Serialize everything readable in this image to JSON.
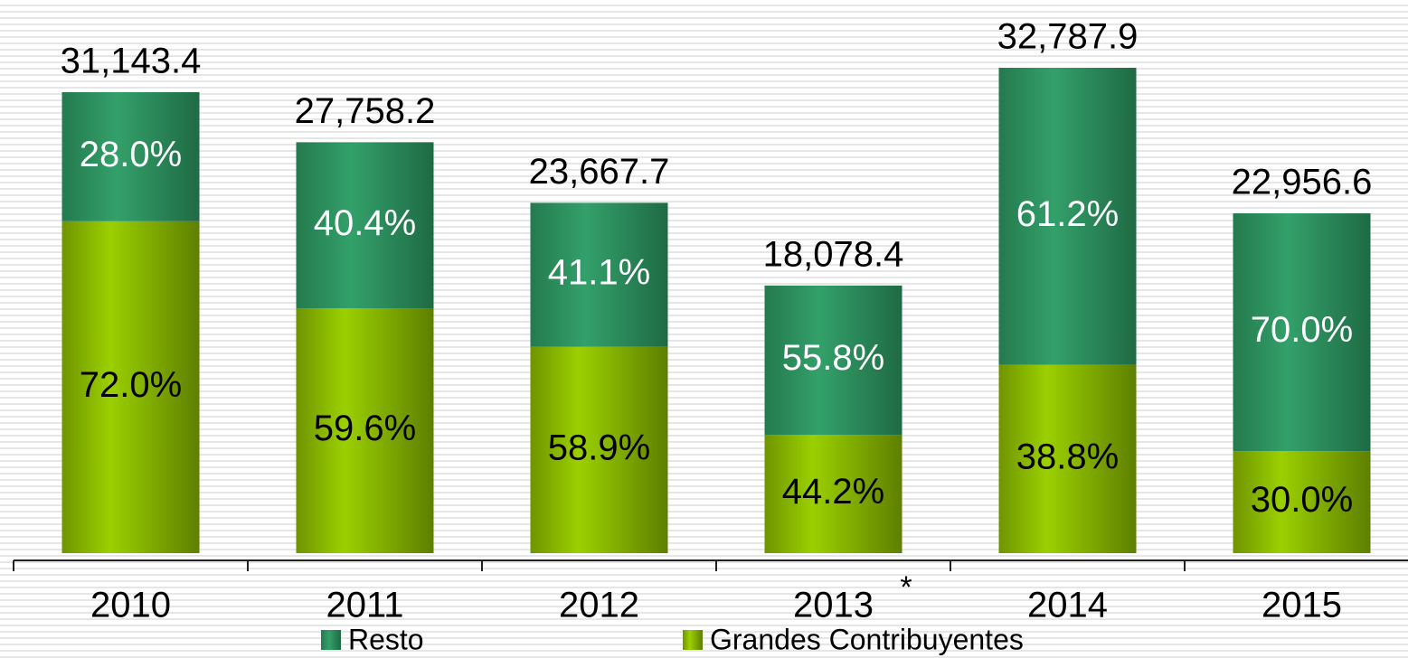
{
  "chart_data": {
    "type": "stacked_bar",
    "categories": [
      "2010",
      "2011",
      "2012",
      "2013",
      "2014",
      "2015"
    ],
    "annotation": "*",
    "totals": {
      "values": [
        31143.4,
        27758.2,
        23667.7,
        18078.4,
        32787.9,
        22956.6
      ],
      "value_labels": [
        "31,143.4",
        "27,758.2",
        "23,667.7",
        "18,078.4",
        "32,787.9",
        "22,956.6"
      ]
    },
    "series": [
      {
        "name": "Grandes Contribuyentes",
        "color": "#8dbf00",
        "values": [
          72.0,
          59.6,
          58.9,
          44.2,
          38.8,
          30.0
        ],
        "value_labels": [
          "72.0%",
          "59.6%",
          "58.9%",
          "44.2%",
          "38.8%",
          "30.0%"
        ]
      },
      {
        "name": "Resto",
        "color": "#2e9462",
        "values": [
          28.0,
          40.4,
          41.1,
          55.8,
          61.2,
          70.0
        ],
        "value_labels": [
          "28.0%",
          "40.4%",
          "41.1%",
          "55.8%",
          "61.2%",
          "70.0%"
        ]
      }
    ]
  }
}
